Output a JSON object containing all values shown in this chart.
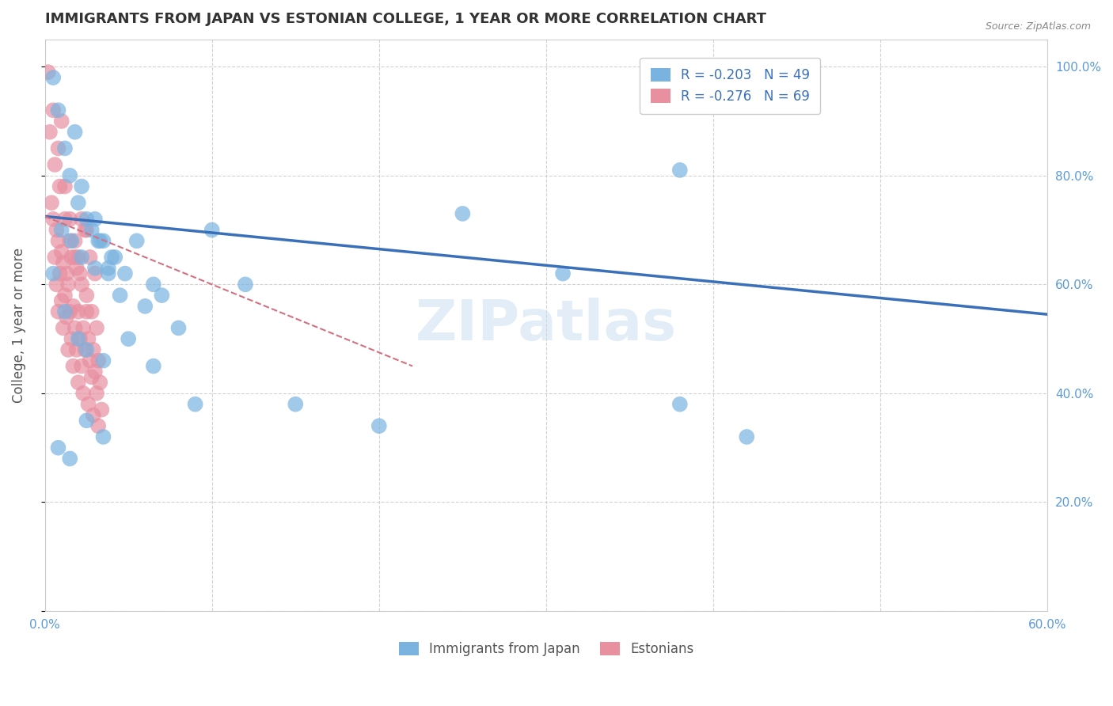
{
  "title": "IMMIGRANTS FROM JAPAN VS ESTONIAN COLLEGE, 1 YEAR OR MORE CORRELATION CHART",
  "source": "Source: ZipAtlas.com",
  "ylabel": "College, 1 year or more",
  "xlim": [
    0.0,
    0.6
  ],
  "ylim": [
    0.0,
    1.05
  ],
  "yticks": [
    0.0,
    0.2,
    0.4,
    0.6,
    0.8,
    1.0
  ],
  "ytick_labels": [
    "",
    "20.0%",
    "40.0%",
    "60.0%",
    "80.0%",
    "100.0%"
  ],
  "xticks": [
    0.0,
    0.1,
    0.2,
    0.3,
    0.4,
    0.5,
    0.6
  ],
  "xtick_labels": [
    "0.0%",
    "",
    "",
    "",
    "",
    "",
    "60.0%"
  ],
  "axis_color": "#5b9bd5",
  "grid_color": "#c0c0c0",
  "background_color": "#ffffff",
  "blue_color": "#7ab3e0",
  "pink_color": "#e88fa0",
  "blue_line_color": "#3a6fba",
  "pink_line_color": "#d47080",
  "watermark": "ZIPatlas",
  "legend_label_blue": "R = -0.203   N = 49",
  "legend_label_pink": "R = -0.276   N = 69",
  "legend_label_blue_bottom": "Immigrants from Japan",
  "legend_label_pink_bottom": "Estonians",
  "blue_scatter_x": [
    0.005,
    0.012,
    0.018,
    0.022,
    0.025,
    0.03,
    0.032,
    0.035,
    0.038,
    0.04,
    0.008,
    0.015,
    0.02,
    0.028,
    0.033,
    0.042,
    0.048,
    0.055,
    0.06,
    0.065,
    0.01,
    0.016,
    0.022,
    0.03,
    0.038,
    0.045,
    0.07,
    0.08,
    0.1,
    0.12,
    0.005,
    0.012,
    0.02,
    0.025,
    0.035,
    0.05,
    0.065,
    0.09,
    0.15,
    0.2,
    0.008,
    0.015,
    0.025,
    0.035,
    0.25,
    0.31,
    0.38,
    0.42,
    0.38
  ],
  "blue_scatter_y": [
    0.98,
    0.85,
    0.88,
    0.78,
    0.72,
    0.72,
    0.68,
    0.68,
    0.63,
    0.65,
    0.92,
    0.8,
    0.75,
    0.7,
    0.68,
    0.65,
    0.62,
    0.68,
    0.56,
    0.6,
    0.7,
    0.68,
    0.65,
    0.63,
    0.62,
    0.58,
    0.58,
    0.52,
    0.7,
    0.6,
    0.62,
    0.55,
    0.5,
    0.48,
    0.46,
    0.5,
    0.45,
    0.38,
    0.38,
    0.34,
    0.3,
    0.28,
    0.35,
    0.32,
    0.73,
    0.62,
    0.38,
    0.32,
    0.81
  ],
  "pink_scatter_x": [
    0.002,
    0.005,
    0.008,
    0.01,
    0.012,
    0.015,
    0.018,
    0.02,
    0.022,
    0.025,
    0.003,
    0.006,
    0.009,
    0.012,
    0.015,
    0.018,
    0.021,
    0.024,
    0.027,
    0.03,
    0.004,
    0.007,
    0.01,
    0.013,
    0.016,
    0.019,
    0.022,
    0.025,
    0.028,
    0.031,
    0.005,
    0.008,
    0.011,
    0.014,
    0.017,
    0.02,
    0.023,
    0.026,
    0.029,
    0.032,
    0.006,
    0.009,
    0.012,
    0.015,
    0.018,
    0.021,
    0.024,
    0.027,
    0.03,
    0.033,
    0.007,
    0.01,
    0.013,
    0.016,
    0.019,
    0.022,
    0.025,
    0.028,
    0.031,
    0.034,
    0.008,
    0.011,
    0.014,
    0.017,
    0.02,
    0.023,
    0.026,
    0.029,
    0.032
  ],
  "pink_scatter_y": [
    0.99,
    0.92,
    0.85,
    0.9,
    0.78,
    0.72,
    0.68,
    0.65,
    0.72,
    0.7,
    0.88,
    0.82,
    0.78,
    0.72,
    0.68,
    0.65,
    0.62,
    0.7,
    0.65,
    0.62,
    0.75,
    0.7,
    0.66,
    0.62,
    0.65,
    0.63,
    0.6,
    0.58,
    0.55,
    0.52,
    0.72,
    0.68,
    0.64,
    0.6,
    0.56,
    0.55,
    0.52,
    0.5,
    0.48,
    0.46,
    0.65,
    0.62,
    0.58,
    0.55,
    0.52,
    0.5,
    0.48,
    0.46,
    0.44,
    0.42,
    0.6,
    0.57,
    0.54,
    0.5,
    0.48,
    0.45,
    0.55,
    0.43,
    0.4,
    0.37,
    0.55,
    0.52,
    0.48,
    0.45,
    0.42,
    0.4,
    0.38,
    0.36,
    0.34
  ],
  "blue_line_x": [
    0.0,
    0.6
  ],
  "blue_line_y": [
    0.725,
    0.545
  ],
  "pink_line_x": [
    0.0,
    0.22
  ],
  "pink_line_y": [
    0.725,
    0.45
  ]
}
